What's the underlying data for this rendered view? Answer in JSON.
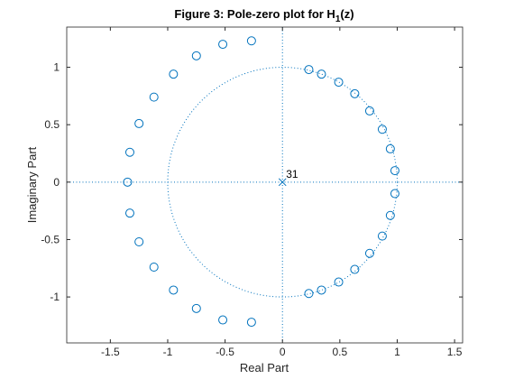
{
  "chart_data": {
    "type": "scatter",
    "title": "Figure 3: Pole-zero plot for H",
    "title_subscript": "1",
    "title_suffix": "(z)",
    "xlabel": "Real Part",
    "ylabel": "Imaginary Part",
    "xlim": [
      -1.88,
      1.57
    ],
    "ylim": [
      -1.4,
      1.35
    ],
    "xticks": [
      -1.5,
      -1,
      -0.5,
      0,
      0.5,
      1,
      1.5
    ],
    "yticks": [
      -1,
      -0.5,
      0,
      0.5,
      1
    ],
    "series": [
      {
        "marker": "o",
        "color": "#0072bd",
        "x": [
          -1.35,
          -1.33,
          -1.25,
          -1.12,
          -0.95,
          -0.75,
          -0.52,
          -0.27,
          -1.33,
          -1.25,
          -1.12,
          -0.95,
          -0.75,
          -0.52,
          -0.27,
          0.23,
          0.34,
          0.49,
          0.63,
          0.76,
          0.87,
          0.94,
          0.98,
          0.23,
          0.34,
          0.49,
          0.63,
          0.76,
          0.87,
          0.94,
          0.98
        ],
        "y": [
          0,
          0.26,
          0.51,
          0.74,
          0.94,
          1.1,
          1.2,
          1.23,
          -0.27,
          -0.52,
          -0.74,
          -0.94,
          -1.1,
          -1.2,
          -1.22,
          0.98,
          0.94,
          0.87,
          0.77,
          0.62,
          0.46,
          0.29,
          0.1,
          -0.97,
          -0.94,
          -0.87,
          -0.76,
          -0.62,
          -0.47,
          -0.29,
          -0.1
        ]
      },
      {
        "marker": "x",
        "color": "#0072bd",
        "x": [
          0
        ],
        "y": [
          0
        ],
        "annotation": "31"
      }
    ]
  }
}
